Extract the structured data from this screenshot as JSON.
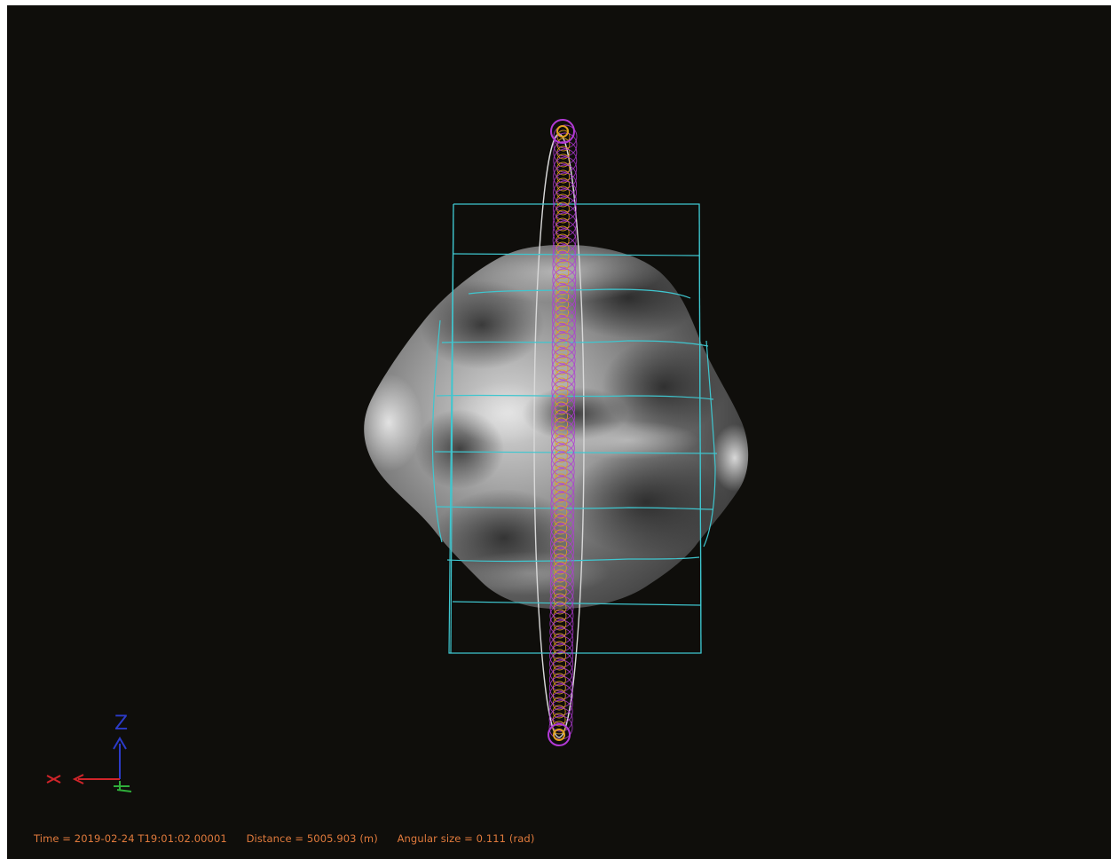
{
  "viewer": {
    "status": {
      "time": "Time = 2019-02-24 T19:01:02.00001",
      "distance": "Distance = 5005.903 (m)",
      "angular_size": "Angular size = 0.111 (rad)"
    },
    "axes": {
      "z_label": "Z",
      "x_label": "x"
    },
    "colors": {
      "background": "#0f0e0b",
      "grid": "#3fc6cf",
      "ring_magenta": "#b23ad6",
      "ring_orange": "#e0a020",
      "axis_red": "#d0242a",
      "axis_blue": "#2c3bc8",
      "axis_green": "#2fae3a",
      "status_text": "#e07a3c"
    }
  }
}
